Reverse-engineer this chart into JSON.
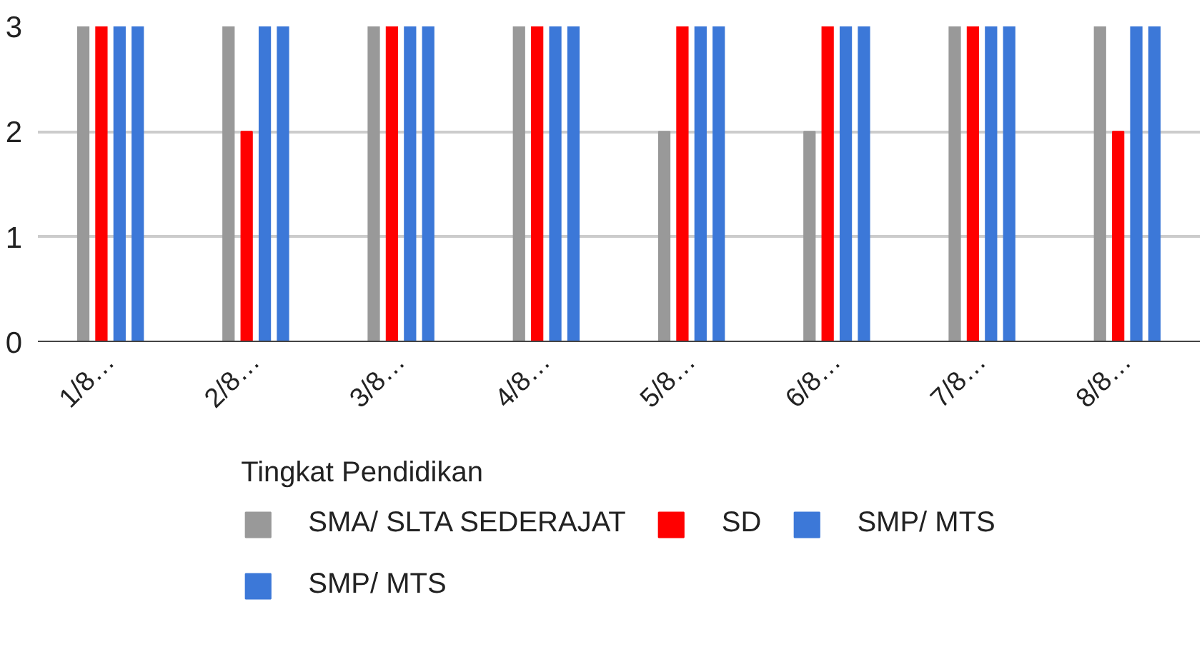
{
  "chart_data": {
    "type": "bar",
    "legend_title": "Tingkat Pendidikan",
    "categories": [
      "1/8…",
      "2/8…",
      "3/8…",
      "4/8…",
      "5/8…",
      "6/8…",
      "7/8…",
      "8/8…"
    ],
    "series": [
      {
        "name": "SMA/ SLTA SEDERAJAT",
        "color": "#999999",
        "values": [
          3,
          3,
          3,
          3,
          2,
          2,
          3,
          3
        ]
      },
      {
        "name": "SD",
        "color": "#ff0000",
        "values": [
          3,
          2,
          3,
          3,
          3,
          3,
          3,
          2
        ]
      },
      {
        "name": "SMP/ MTS",
        "color": "#3c78d8",
        "values": [
          3,
          3,
          3,
          3,
          3,
          3,
          3,
          3
        ]
      },
      {
        "name": "SMP/ MTS",
        "color": "#3c78d8",
        "values": [
          3,
          3,
          3,
          3,
          3,
          3,
          3,
          3
        ]
      }
    ],
    "ylim": [
      0,
      3
    ],
    "yticks": [
      0,
      1,
      2,
      3
    ],
    "grid": "y",
    "legend": "bottom"
  }
}
